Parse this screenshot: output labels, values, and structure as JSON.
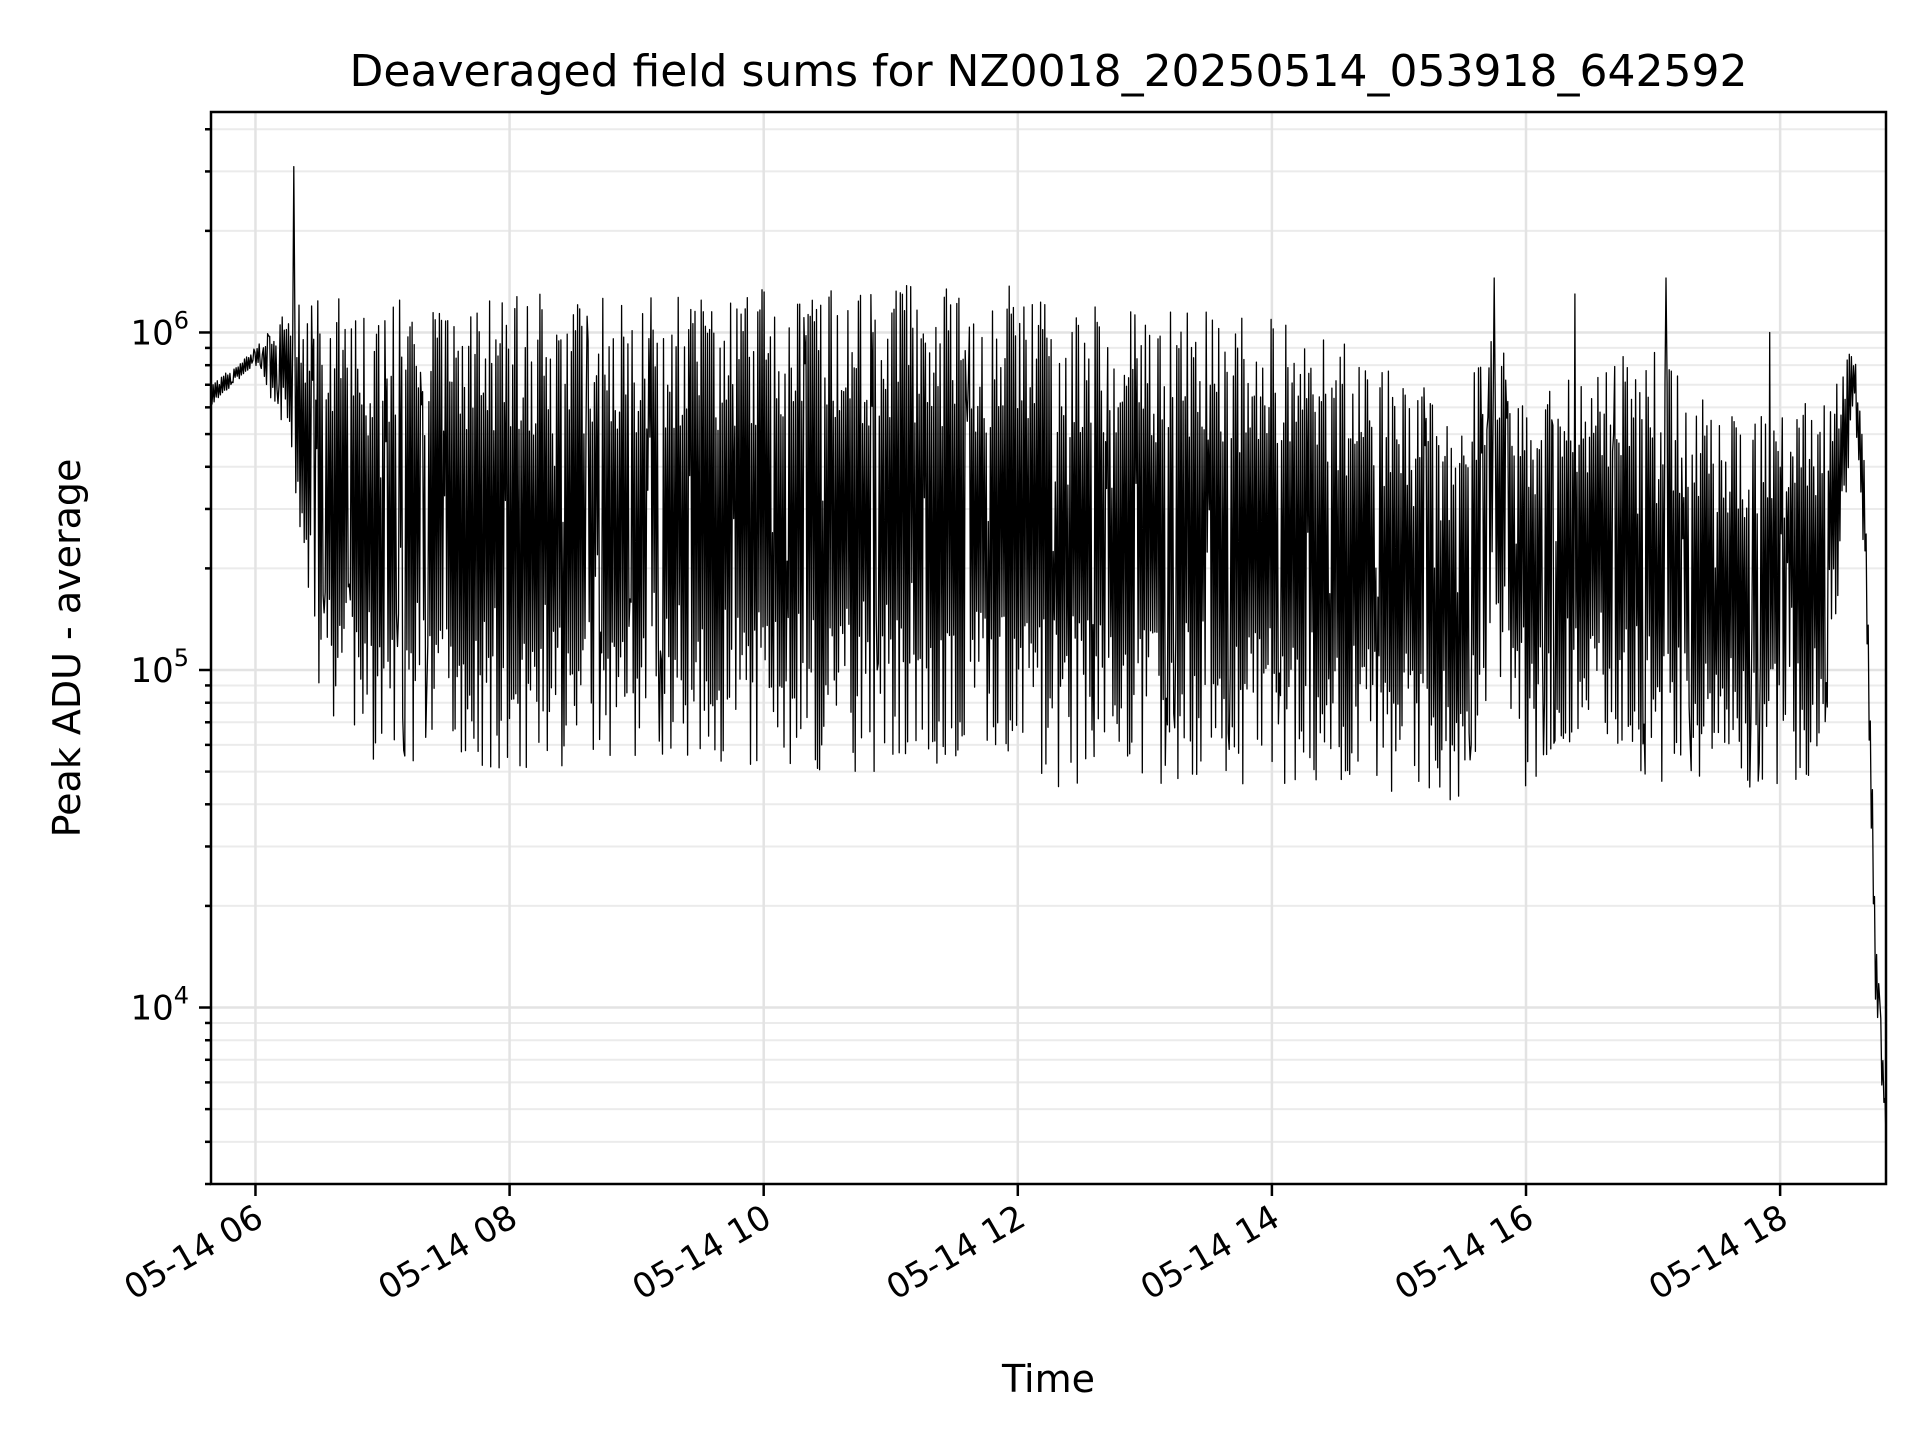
{
  "chart_data": {
    "type": "line",
    "title": "Deaveraged field sums for NZ0018_20250514_053918_642592",
    "xlabel": "Time",
    "ylabel": "Peak ADU - average",
    "yscale": "log",
    "ylim": [
      3000,
      4500000
    ],
    "xlim": [
      "2025-05-14 05:39",
      "2025-05-14 18:50"
    ],
    "x_ticks": [
      {
        "x": "2025-05-14 06:00",
        "label": "05-14 06"
      },
      {
        "x": "2025-05-14 08:00",
        "label": "05-14 08"
      },
      {
        "x": "2025-05-14 10:00",
        "label": "05-14 10"
      },
      {
        "x": "2025-05-14 12:00",
        "label": "05-14 12"
      },
      {
        "x": "2025-05-14 14:00",
        "label": "05-14 14"
      },
      {
        "x": "2025-05-14 16:00",
        "label": "05-14 16"
      },
      {
        "x": "2025-05-14 18:00",
        "label": "05-14 18"
      }
    ],
    "y_ticks": [
      {
        "value": 10000,
        "base": "10",
        "exp": "4"
      },
      {
        "value": 100000,
        "base": "10",
        "exp": "5"
      },
      {
        "value": 1000000,
        "base": "10",
        "exp": "6"
      }
    ],
    "grid": "both",
    "line_color": "#000000",
    "envelope": {
      "description_series": "upper and lower envelope of the rapidly oscillating signal",
      "x": [
        "2025-05-14 05:39",
        "2025-05-14 06:00",
        "2025-05-14 06:15",
        "2025-05-14 06:30",
        "2025-05-14 07:00",
        "2025-05-14 08:00",
        "2025-05-14 09:00",
        "2025-05-14 10:00",
        "2025-05-14 11:00",
        "2025-05-14 12:00",
        "2025-05-14 13:00",
        "2025-05-14 14:00",
        "2025-05-14 14:40",
        "2025-05-14 15:10",
        "2025-05-14 15:30",
        "2025-05-14 15:45",
        "2025-05-14 16:00",
        "2025-05-14 16:30",
        "2025-05-14 17:00",
        "2025-05-14 17:30",
        "2025-05-14 18:00",
        "2025-05-14 18:20",
        "2025-05-14 18:35",
        "2025-05-14 18:40",
        "2025-05-14 18:45",
        "2025-05-14 18:50"
      ],
      "upper": [
        700000,
        900000,
        1200000,
        1300000,
        1300000,
        1300000,
        1300000,
        1350000,
        1400000,
        1400000,
        1250000,
        1100000,
        900000,
        700000,
        600000,
        1200000,
        650000,
        800000,
        900000,
        600000,
        600000,
        700000,
        900000,
        400000,
        20000,
        5000
      ],
      "lower": [
        600000,
        800000,
        500000,
        80000,
        50000,
        50000,
        55000,
        50000,
        50000,
        45000,
        45000,
        45000,
        45000,
        40000,
        35000,
        100000,
        45000,
        70000,
        45000,
        45000,
        45000,
        50000,
        600000,
        200000,
        10000,
        4000
      ]
    },
    "spikes": [
      {
        "x": "2025-05-14 06:18",
        "y": 3100000
      },
      {
        "x": "2025-05-14 15:45",
        "y": 1450000
      },
      {
        "x": "2025-05-14 16:23",
        "y": 1300000
      },
      {
        "x": "2025-05-14 17:06",
        "y": 1450000
      },
      {
        "x": "2025-05-14 17:55",
        "y": 1000000
      }
    ]
  }
}
